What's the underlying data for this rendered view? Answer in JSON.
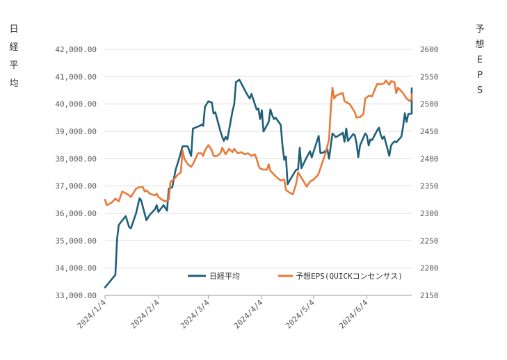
{
  "chart_data": {
    "type": "line",
    "left_axis_label": "日経平均",
    "right_axis_label": "予想EPS",
    "left_ylim": [
      33000,
      42000
    ],
    "right_ylim": [
      2150,
      2600
    ],
    "left_ticks": [
      "33,000.00",
      "34,000.00",
      "35,000.00",
      "36,000.00",
      "37,000.00",
      "38,000.00",
      "39,000.00",
      "40,000.00",
      "41,000.00",
      "42,000.00"
    ],
    "right_ticks": [
      "2150",
      "2200",
      "2250",
      "2300",
      "2350",
      "2400",
      "2450",
      "2500",
      "2550",
      "2600"
    ],
    "x_tick_labels": [
      "2024/1/4",
      "2024/2/4",
      "2024/3/4",
      "2024/4/4",
      "2024/5/4",
      "2024/6/4"
    ],
    "x_range": [
      "2024/1/4",
      "2024/6/30"
    ],
    "grid": "horizontal",
    "legend_position": "bottom-center",
    "colors": {
      "nikkei": "#1f5f7a",
      "eps": "#e8793a",
      "grid": "#dddddd",
      "axis": "#999999"
    },
    "series": [
      {
        "name": "日経平均",
        "axis": "left",
        "points": [
          [
            "2024/1/4",
            33290
          ],
          [
            "2024/1/10",
            33750
          ],
          [
            "2024/1/11",
            35050
          ],
          [
            "2024/1/12",
            35580
          ],
          [
            "2024/1/16",
            35900
          ],
          [
            "2024/1/18",
            35500
          ],
          [
            "2024/1/19",
            35450
          ],
          [
            "2024/1/22",
            36000
          ],
          [
            "2024/1/24",
            36550
          ],
          [
            "2024/1/25",
            36480
          ],
          [
            "2024/1/26",
            36230
          ],
          [
            "2024/1/28",
            35750
          ],
          [
            "2024/1/30",
            35950
          ],
          [
            "2024/2/2",
            36150
          ],
          [
            "2024/2/3",
            36300
          ],
          [
            "2024/2/4",
            36050
          ],
          [
            "2024/2/7",
            36300
          ],
          [
            "2024/2/9",
            36100
          ],
          [
            "2024/2/10",
            36900
          ],
          [
            "2024/2/12",
            36950
          ],
          [
            "2024/2/14",
            37600
          ],
          [
            "2024/2/16",
            38000
          ],
          [
            "2024/2/18",
            38450
          ],
          [
            "2024/2/21",
            38450
          ],
          [
            "2024/2/23",
            38100
          ],
          [
            "2024/2/24",
            39100
          ],
          [
            "2024/2/28",
            39200
          ],
          [
            "2024/2/29",
            39250
          ],
          [
            "2024/3/1",
            39200
          ],
          [
            "2024/3/2",
            39900
          ],
          [
            "2024/3/4",
            40100
          ],
          [
            "2024/3/6",
            40050
          ],
          [
            "2024/3/7",
            39650
          ],
          [
            "2024/3/8",
            39700
          ],
          [
            "2024/3/11",
            39000
          ],
          [
            "2024/3/12",
            38800
          ],
          [
            "2024/3/13",
            38650
          ],
          [
            "2024/3/14",
            38800
          ],
          [
            "2024/3/15",
            38700
          ],
          [
            "2024/3/18",
            39740
          ],
          [
            "2024/3/19",
            40000
          ],
          [
            "2024/3/20",
            40800
          ],
          [
            "2024/3/22",
            40888
          ],
          [
            "2024/3/26",
            40400
          ],
          [
            "2024/3/27",
            40300
          ],
          [
            "2024/3/28",
            40200
          ],
          [
            "2024/3/29",
            40369
          ],
          [
            "2024/4/1",
            39800
          ],
          [
            "2024/4/2",
            39838
          ],
          [
            "2024/4/3",
            39450
          ],
          [
            "2024/4/4",
            39773
          ],
          [
            "2024/4/5",
            38992
          ],
          [
            "2024/4/8",
            39347
          ],
          [
            "2024/4/9",
            39800
          ],
          [
            "2024/4/10",
            39600
          ],
          [
            "2024/4/11",
            39450
          ],
          [
            "2024/4/12",
            39500
          ],
          [
            "2024/4/15",
            39232
          ],
          [
            "2024/4/16",
            38471
          ],
          [
            "2024/4/17",
            37961
          ],
          [
            "2024/4/18",
            38079
          ],
          [
            "2024/4/19",
            37068
          ],
          [
            "2024/4/22",
            37400
          ],
          [
            "2024/4/24",
            37600
          ],
          [
            "2024/4/25",
            37600
          ],
          [
            "2024/4/26",
            38400
          ],
          [
            "2024/4/27",
            37650
          ],
          [
            "2024/4/30",
            38050
          ],
          [
            "2024/5/2",
            38274
          ],
          [
            "2024/5/3",
            38050
          ],
          [
            "2024/5/7",
            38835
          ],
          [
            "2024/5/8",
            38202
          ],
          [
            "2024/5/10",
            38229
          ],
          [
            "2024/5/12",
            38356
          ],
          [
            "2024/5/13",
            38000
          ],
          [
            "2024/5/15",
            38920
          ],
          [
            "2024/5/17",
            38787
          ],
          [
            "2024/5/20",
            38900
          ],
          [
            "2024/5/21",
            38946
          ],
          [
            "2024/5/22",
            38617
          ],
          [
            "2024/5/23",
            39103
          ],
          [
            "2024/5/24",
            38646
          ],
          [
            "2024/5/27",
            38900
          ],
          [
            "2024/5/28",
            38856
          ],
          [
            "2024/5/29",
            38556
          ],
          [
            "2024/5/30",
            38054
          ],
          [
            "2024/5/31",
            38487
          ],
          [
            "2024/6/3",
            38923
          ],
          [
            "2024/6/4",
            38837
          ],
          [
            "2024/6/5",
            38490
          ],
          [
            "2024/6/6",
            38703
          ],
          [
            "2024/6/7",
            38683
          ],
          [
            "2024/6/10",
            39038
          ],
          [
            "2024/6/11",
            39134
          ],
          [
            "2024/6/12",
            38877
          ],
          [
            "2024/6/13",
            38720
          ],
          [
            "2024/6/14",
            38815
          ],
          [
            "2024/6/17",
            38102
          ],
          [
            "2024/6/18",
            38482
          ],
          [
            "2024/6/19",
            38570
          ],
          [
            "2024/6/20",
            38633
          ],
          [
            "2024/6/21",
            38596
          ],
          [
            "2024/6/24",
            38804
          ],
          [
            "2024/6/25",
            39173
          ],
          [
            "2024/6/26",
            39667
          ],
          [
            "2024/6/27",
            39342
          ],
          [
            "2024/6/28",
            39631
          ],
          [
            "2024/6/30",
            39650
          ],
          [
            "2024/7/1",
            39800
          ],
          [
            "2024/7/2",
            40074
          ],
          [
            "2024/7/3",
            40580
          ]
        ]
      },
      {
        "name": "予想EPS(QUICKコンセンサス)",
        "axis": "right",
        "points": [
          [
            "2024/1/4",
            2325
          ],
          [
            "2024/1/5",
            2315
          ],
          [
            "2024/1/8",
            2320
          ],
          [
            "2024/1/10",
            2327
          ],
          [
            "2024/1/12",
            2322
          ],
          [
            "2024/1/14",
            2340
          ],
          [
            "2024/1/18",
            2333
          ],
          [
            "2024/1/19",
            2330
          ],
          [
            "2024/1/22",
            2345
          ],
          [
            "2024/1/24",
            2348
          ],
          [
            "2024/1/26",
            2348
          ],
          [
            "2024/1/27",
            2340
          ],
          [
            "2024/1/28",
            2342
          ],
          [
            "2024/1/30",
            2336
          ],
          [
            "2024/2/2",
            2333
          ],
          [
            "2024/2/3",
            2336
          ],
          [
            "2024/2/4",
            2330
          ],
          [
            "2024/2/6",
            2325
          ],
          [
            "2024/2/8",
            2322
          ],
          [
            "2024/2/10",
            2325
          ],
          [
            "2024/2/11",
            2358
          ],
          [
            "2024/2/13",
            2362
          ],
          [
            "2024/2/15",
            2370
          ],
          [
            "2024/2/17",
            2375
          ],
          [
            "2024/2/18",
            2415
          ],
          [
            "2024/2/19",
            2400
          ],
          [
            "2024/2/21",
            2390
          ],
          [
            "2024/2/23",
            2385
          ],
          [
            "2024/2/24",
            2390
          ],
          [
            "2024/2/27",
            2410
          ],
          [
            "2024/2/29",
            2410
          ],
          [
            "2024/3/1",
            2405
          ],
          [
            "2024/3/2",
            2415
          ],
          [
            "2024/3/4",
            2425
          ],
          [
            "2024/3/6",
            2415
          ],
          [
            "2024/3/7",
            2405
          ],
          [
            "2024/3/9",
            2405
          ],
          [
            "2024/3/11",
            2410
          ],
          [
            "2024/3/12",
            2420
          ],
          [
            "2024/3/14",
            2408
          ],
          [
            "2024/3/16",
            2418
          ],
          [
            "2024/3/18",
            2412
          ],
          [
            "2024/3/19",
            2418
          ],
          [
            "2024/3/21",
            2410
          ],
          [
            "2024/3/23",
            2412
          ],
          [
            "2024/3/25",
            2408
          ],
          [
            "2024/3/27",
            2410
          ],
          [
            "2024/3/29",
            2405
          ],
          [
            "2024/3/31",
            2408
          ],
          [
            "2024/4/1",
            2400
          ],
          [
            "2024/4/2",
            2388
          ],
          [
            "2024/4/3",
            2382
          ],
          [
            "2024/4/5",
            2380
          ],
          [
            "2024/4/7",
            2380
          ],
          [
            "2024/4/8",
            2390
          ],
          [
            "2024/4/9",
            2378
          ],
          [
            "2024/4/12",
            2368
          ],
          [
            "2024/4/13",
            2365
          ],
          [
            "2024/4/15",
            2360
          ],
          [
            "2024/4/17",
            2362
          ],
          [
            "2024/4/18",
            2343
          ],
          [
            "2024/4/20",
            2338
          ],
          [
            "2024/4/22",
            2335
          ],
          [
            "2024/4/24",
            2355
          ],
          [
            "2024/4/25",
            2375
          ],
          [
            "2024/4/28",
            2360
          ],
          [
            "2024/4/30",
            2349
          ],
          [
            "2024/5/2",
            2358
          ],
          [
            "2024/5/4",
            2362
          ],
          [
            "2024/5/6",
            2368
          ],
          [
            "2024/5/7",
            2373
          ],
          [
            "2024/5/9",
            2392
          ],
          [
            "2024/5/11",
            2410
          ],
          [
            "2024/5/13",
            2435
          ],
          [
            "2024/5/14",
            2490
          ],
          [
            "2024/5/15",
            2530
          ],
          [
            "2024/5/16",
            2510
          ],
          [
            "2024/5/17",
            2515
          ],
          [
            "2024/5/19",
            2518
          ],
          [
            "2024/5/21",
            2520
          ],
          [
            "2024/5/22",
            2505
          ],
          [
            "2024/5/25",
            2500
          ],
          [
            "2024/5/27",
            2490
          ],
          [
            "2024/5/28",
            2485
          ],
          [
            "2024/5/29",
            2475
          ],
          [
            "2024/5/31",
            2476
          ],
          [
            "2024/6/2",
            2482
          ],
          [
            "2024/6/3",
            2510
          ],
          [
            "2024/6/5",
            2515
          ],
          [
            "2024/6/7",
            2514
          ],
          [
            "2024/6/9",
            2530
          ],
          [
            "2024/6/10",
            2537
          ],
          [
            "2024/6/12",
            2536
          ],
          [
            "2024/6/14",
            2538
          ],
          [
            "2024/6/15",
            2543
          ],
          [
            "2024/6/17",
            2535
          ],
          [
            "2024/6/18",
            2542
          ],
          [
            "2024/6/20",
            2540
          ],
          [
            "2024/6/21",
            2520
          ],
          [
            "2024/6/22",
            2530
          ],
          [
            "2024/6/25",
            2520
          ],
          [
            "2024/6/27",
            2510
          ],
          [
            "2024/6/29",
            2505
          ],
          [
            "2024/6/30",
            2510
          ],
          [
            "2024/7/1",
            2510
          ],
          [
            "2024/7/2",
            2515
          ],
          [
            "2024/7/3",
            2518
          ]
        ]
      }
    ]
  }
}
